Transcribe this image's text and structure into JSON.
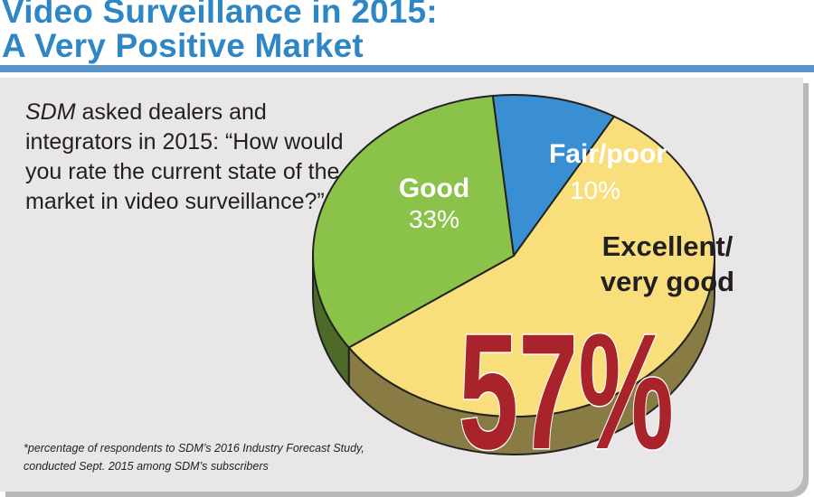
{
  "title_line1": "Video Surveillance in 2015:",
  "title_line2": "A Very Positive Market",
  "question_brand": "SDM",
  "question_rest": " asked dealers and integrators in 2015: “How would you rate the current state of the market in video surveillance?”",
  "footnote_line1": "*percentage of respondents to SDM’s 2016 Industry Forecast Study,",
  "footnote_line2": "conducted Sept. 2015 among SDM’s subscribers",
  "chart_data": {
    "type": "pie",
    "title": "Video Surveillance in 2015: A Very Positive Market",
    "slices": [
      {
        "label": "Excellent/ very good",
        "label_line1": "Excellent/",
        "label_line2": "very good",
        "value": 57,
        "display": "57%",
        "color": "#f9df7c"
      },
      {
        "label": "Good",
        "label_line1": "Good",
        "label_line2": "",
        "value": 33,
        "display": "33%",
        "color": "#8bc34a"
      },
      {
        "label": "Fair/poor",
        "label_line1": "Fair/poor",
        "label_line2": "",
        "value": 10,
        "display": "10%",
        "color": "#3a8fd2"
      }
    ],
    "legend": "none"
  }
}
